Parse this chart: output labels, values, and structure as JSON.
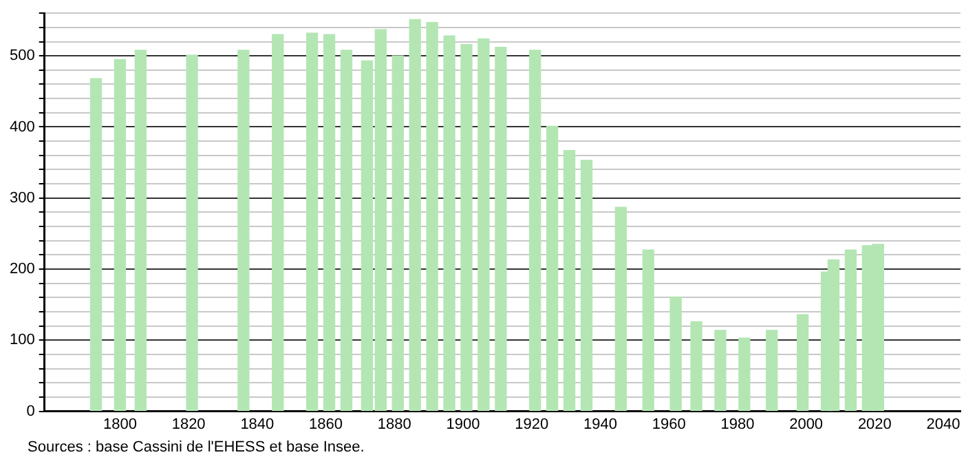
{
  "chart_data": {
    "type": "bar",
    "color": "#b3e6b3",
    "x": [
      1793,
      1800,
      1806,
      1821,
      1836,
      1846,
      1856,
      1861,
      1866,
      1872,
      1876,
      1881,
      1886,
      1891,
      1896,
      1901,
      1906,
      1911,
      1921,
      1926,
      1931,
      1936,
      1946,
      1954,
      1962,
      1968,
      1975,
      1982,
      1990,
      1999,
      2006,
      2008,
      2013,
      2018,
      2021
    ],
    "values": [
      468,
      495,
      508,
      501,
      508,
      530,
      532,
      530,
      508,
      493,
      537,
      500,
      551,
      547,
      528,
      516,
      524,
      512,
      508,
      401,
      367,
      353,
      287,
      227,
      161,
      126,
      114,
      103,
      114,
      136,
      196,
      213,
      227,
      233,
      235
    ],
    "xlim": [
      1778,
      2045
    ],
    "xticks": [
      1800,
      1820,
      1840,
      1860,
      1880,
      1900,
      1920,
      1940,
      1960,
      1980,
      2000,
      2020,
      2040
    ],
    "ylim": [
      0,
      560
    ],
    "yticks": [
      0,
      {
        "value": 20,
        "label": null
      },
      {
        "value": 40,
        "label": null
      },
      {
        "value": 60,
        "label": null
      },
      {
        "value": 80,
        "label": null
      },
      100,
      {
        "value": 120,
        "label": null
      },
      {
        "value": 140,
        "label": null
      },
      {
        "value": 160,
        "label": null
      },
      {
        "value": 180,
        "label": null
      },
      200,
      {
        "value": 220,
        "label": null
      },
      {
        "value": 240,
        "label": null
      },
      {
        "value": 260,
        "label": null
      },
      {
        "value": 280,
        "label": null
      },
      300,
      {
        "value": 320,
        "label": null
      },
      {
        "value": 340,
        "label": null
      },
      {
        "value": 360,
        "label": null
      },
      {
        "value": 380,
        "label": null
      },
      400,
      {
        "value": 420,
        "label": null
      },
      {
        "value": 440,
        "label": null
      },
      {
        "value": 460,
        "label": null
      },
      {
        "value": 480,
        "label": null
      },
      500,
      {
        "value": 520,
        "label": null
      },
      {
        "value": 540,
        "label": null
      },
      {
        "value": 560,
        "label": null
      }
    ],
    "grid": "y",
    "legend": false,
    "annotations": [
      "Sources : base Cassini de l'EHESS et base Insee."
    ]
  }
}
